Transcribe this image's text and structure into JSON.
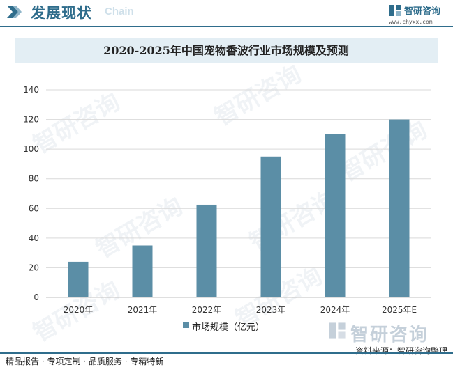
{
  "header": {
    "title": "发展现状",
    "ghost_text": "Chain",
    "accent_color": "#2f6d8c"
  },
  "brand": {
    "name": "智研咨询",
    "url": "www.chyxx.com",
    "logo_icon": "chyxx-logo-icon"
  },
  "watermark_text": "智研咨询",
  "footer": {
    "brand_name": "智研咨询",
    "source": "资料来源：智研咨询整理",
    "tagline": "精品报告 · 专项定制 · 品质服务 · 专精特新"
  },
  "chart_data": {
    "type": "bar",
    "title": "2020-2025年中国宠物香波行业市场规模及预测",
    "categories": [
      "2020年",
      "2021年",
      "2022年",
      "2023年",
      "2024年",
      "2025年E"
    ],
    "series": [
      {
        "name": "市场规模（亿元）",
        "values": [
          24,
          35,
          62.5,
          95,
          110,
          120
        ]
      }
    ],
    "yticks": [
      0,
      20,
      40,
      60,
      80,
      100,
      120,
      140
    ],
    "ylim": [
      0,
      140
    ],
    "xlabel": "",
    "ylabel": "",
    "grid": true,
    "legend": "bottom",
    "bar_color": "#5b8ea6",
    "grid_color": "#d9d9d9"
  }
}
